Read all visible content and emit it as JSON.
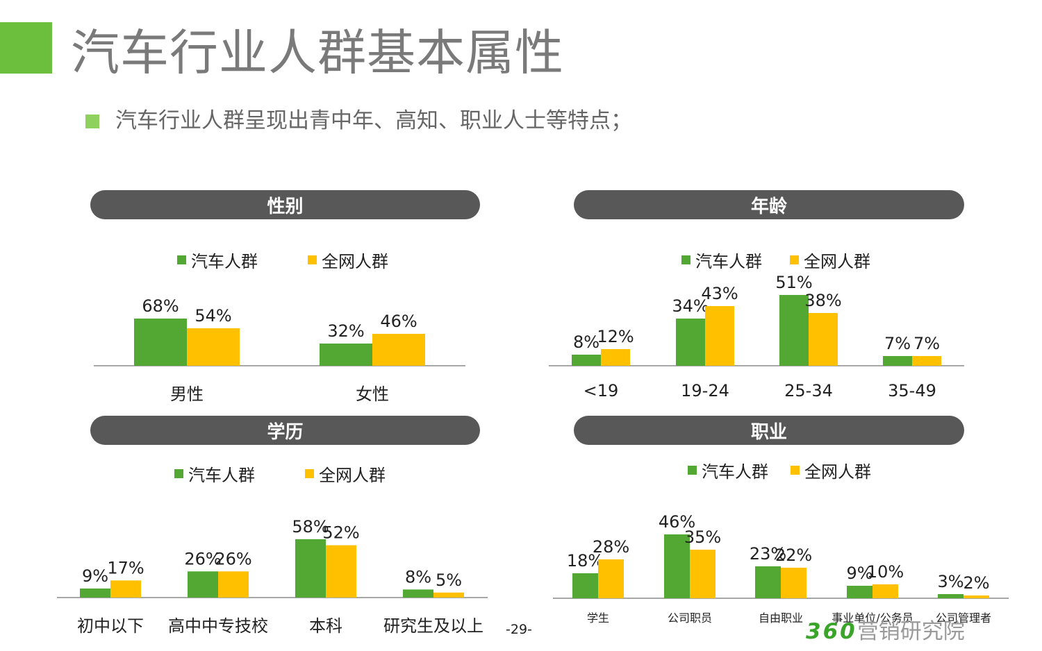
{
  "header": {
    "title": "汽车行业人群基本属性",
    "subtitle": "汽车行业人群呈现出青中年、高知、职业人士等特点；"
  },
  "footer": {
    "page_number": "-29-",
    "brand_number": "360",
    "brand_text": "营销研究院"
  },
  "colors": {
    "car": "#52a832",
    "all": "#ffc000",
    "pill": "#585858",
    "accent": "#6cbf3c"
  },
  "legend": {
    "series1": "汽车人群",
    "series2": "全网人群"
  },
  "chart_data": [
    {
      "id": "gender",
      "type": "bar",
      "title": "性别",
      "categories": [
        "男性",
        "女性"
      ],
      "series": [
        {
          "name": "汽车人群",
          "values": [
            68,
            32
          ]
        },
        {
          "name": "全网人群",
          "values": [
            54,
            46
          ]
        }
      ]
    },
    {
      "id": "age",
      "type": "bar",
      "title": "年龄",
      "categories": [
        "<19",
        "19-24",
        "25-34",
        "35-49"
      ],
      "series": [
        {
          "name": "汽车人群",
          "values": [
            8,
            34,
            51,
            7
          ]
        },
        {
          "name": "全网人群",
          "values": [
            12,
            43,
            38,
            7
          ]
        }
      ]
    },
    {
      "id": "education",
      "type": "bar",
      "title": "学历",
      "categories": [
        "初中以下",
        "高中中专技校",
        "本科",
        "研究生及以上"
      ],
      "series": [
        {
          "name": "汽车人群",
          "values": [
            9,
            26,
            58,
            8
          ]
        },
        {
          "name": "全网人群",
          "values": [
            17,
            26,
            52,
            5
          ]
        }
      ]
    },
    {
      "id": "occupation",
      "type": "bar",
      "title": "职业",
      "categories": [
        "学生",
        "公司职员",
        "自由职业",
        "事业单位/公务员",
        "公司管理者"
      ],
      "series": [
        {
          "name": "汽车人群",
          "values": [
            18,
            46,
            23,
            9,
            3
          ]
        },
        {
          "name": "全网人群",
          "values": [
            28,
            35,
            22,
            10,
            2
          ]
        }
      ]
    }
  ]
}
